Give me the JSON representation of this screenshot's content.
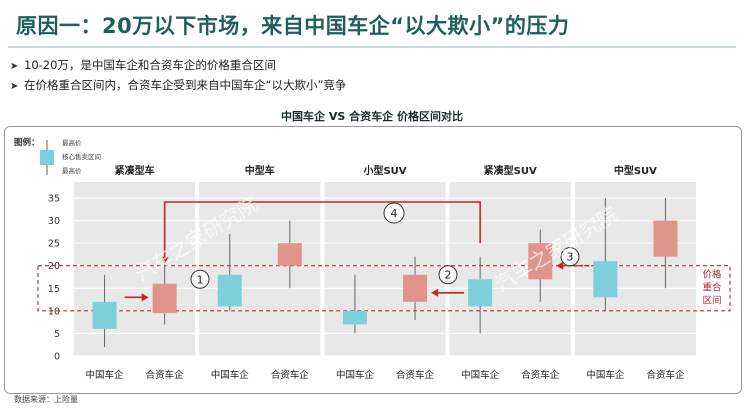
{
  "header": {
    "title": "原因一：20万以下市场，来自中国车企“以大欺小”的压力",
    "bullets": [
      "10-20万，是中国车企和合资车企的价格重合区间",
      "在价格重合区间内，合资车企受到来自中国车企“以大欺小”竞争"
    ]
  },
  "chart_title": "中国车企 VS 合资车企 价格区间对比",
  "legend": {
    "title": "图例：",
    "top": "最高价",
    "mid": "核心售卖区间",
    "bottom": "最高价"
  },
  "overlap_label": [
    "价格",
    "重合",
    "区间"
  ],
  "watermark": "汽车之家研究院",
  "source": "数据来源：上险量",
  "colors": {
    "china": "#7ccfdb",
    "jv": "#e0958a",
    "band_bg": "#e8e8e8",
    "arrow": "#c0262c"
  },
  "chart_data": {
    "type": "candlestick-range",
    "ylim": [
      0,
      35
    ],
    "yticks": [
      0,
      5,
      10,
      15,
      20,
      25,
      30,
      35
    ],
    "grid": true,
    "overlap_range": [
      10,
      20
    ],
    "segments": [
      "紧凑型车",
      "中型车",
      "小型SUV",
      "紧凑型SUV",
      "中型SUV"
    ],
    "items": [
      {
        "segment": "紧凑型车",
        "label": "中国车企",
        "group": "china",
        "low": 2,
        "q1": 6,
        "q3": 12,
        "high": 18
      },
      {
        "segment": "紧凑型车",
        "label": "合资车企",
        "group": "jv",
        "low": 7,
        "q1": 9.5,
        "q3": 16,
        "high": 21
      },
      {
        "segment": "中型车",
        "label": "中国车企",
        "group": "china",
        "low": 10,
        "q1": 11,
        "q3": 18,
        "high": 27
      },
      {
        "segment": "中型车",
        "label": "合资车企",
        "group": "jv",
        "low": 15,
        "q1": 20,
        "q3": 25,
        "high": 30
      },
      {
        "segment": "小型SUV",
        "label": "中国车企",
        "group": "china",
        "low": 5,
        "q1": 7,
        "q3": 10,
        "high": 18
      },
      {
        "segment": "小型SUV",
        "label": "合资车企",
        "group": "jv",
        "low": 8,
        "q1": 12,
        "q3": 18,
        "high": 22
      },
      {
        "segment": "紧凑型SUV",
        "label": "中国车企",
        "group": "china",
        "low": 5,
        "q1": 11,
        "q3": 17,
        "high": 22
      },
      {
        "segment": "紧凑型SUV",
        "label": "合资车企",
        "group": "jv",
        "low": 12,
        "q1": 17,
        "q3": 25,
        "high": 28
      },
      {
        "segment": "中型SUV",
        "label": "中国车企",
        "group": "china",
        "low": 10,
        "q1": 13,
        "q3": 21,
        "high": 35
      },
      {
        "segment": "中型SUV",
        "label": "合资车企",
        "group": "jv",
        "low": 15,
        "q1": 22,
        "q3": 30,
        "high": 35
      }
    ],
    "annotations": [
      {
        "number": "①",
        "from_index": 0,
        "to_index": 1
      },
      {
        "number": "②",
        "from_index": 6,
        "to_index": 5
      },
      {
        "number": "③",
        "from_index": 8,
        "to_index": 7
      },
      {
        "number": "④",
        "from_index": 6,
        "to_index": 1
      }
    ]
  }
}
